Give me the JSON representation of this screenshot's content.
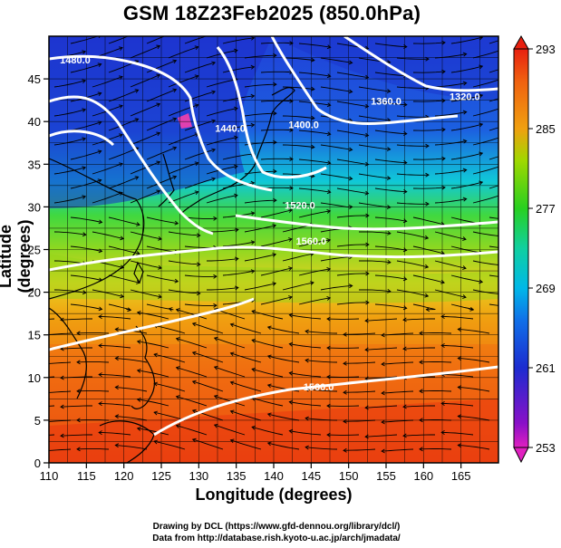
{
  "title": "GSM 18Z23Feb2025 (850.0hPa)",
  "x_axis": {
    "label": "Longitude (degrees)",
    "ticks": [
      "110",
      "115",
      "120",
      "125",
      "130",
      "135",
      "140",
      "145",
      "150",
      "155",
      "160",
      "165"
    ]
  },
  "y_axis": {
    "label": "Latitude  (degrees)",
    "ticks": [
      "0",
      "5",
      "10",
      "15",
      "20",
      "25",
      "30",
      "35",
      "40",
      "45"
    ]
  },
  "colorbar": {
    "ticks": [
      "253",
      "261",
      "269",
      "277",
      "285",
      "293"
    ],
    "colors": [
      "#e020c0",
      "#1c2cd0",
      "#00b8e8",
      "#28d020",
      "#f0a010",
      "#e82010"
    ]
  },
  "contour_labels": [
    {
      "text": "1480.0",
      "lon": 113.5,
      "lat": 46.8
    },
    {
      "text": "1440.0",
      "lon": 134.2,
      "lat": 38.8
    },
    {
      "text": "1400.0",
      "lon": 144.0,
      "lat": 39.2
    },
    {
      "text": "1360.0",
      "lon": 155.0,
      "lat": 42.0
    },
    {
      "text": "1320.0",
      "lon": 165.5,
      "lat": 42.5
    },
    {
      "text": "1520.0",
      "lon": 143.5,
      "lat": 29.8
    },
    {
      "text": "1560.0",
      "lon": 145.0,
      "lat": 25.6
    },
    {
      "text": "1560.0",
      "lon": 146.0,
      "lat": 8.5
    }
  ],
  "credits": {
    "line1": "Drawing by DCL (https://www.gfd-dennou.org/library/dcl/)",
    "line2": "Data from http://database.rish.kyoto-u.ac.jp/arch/jmadata/"
  }
}
